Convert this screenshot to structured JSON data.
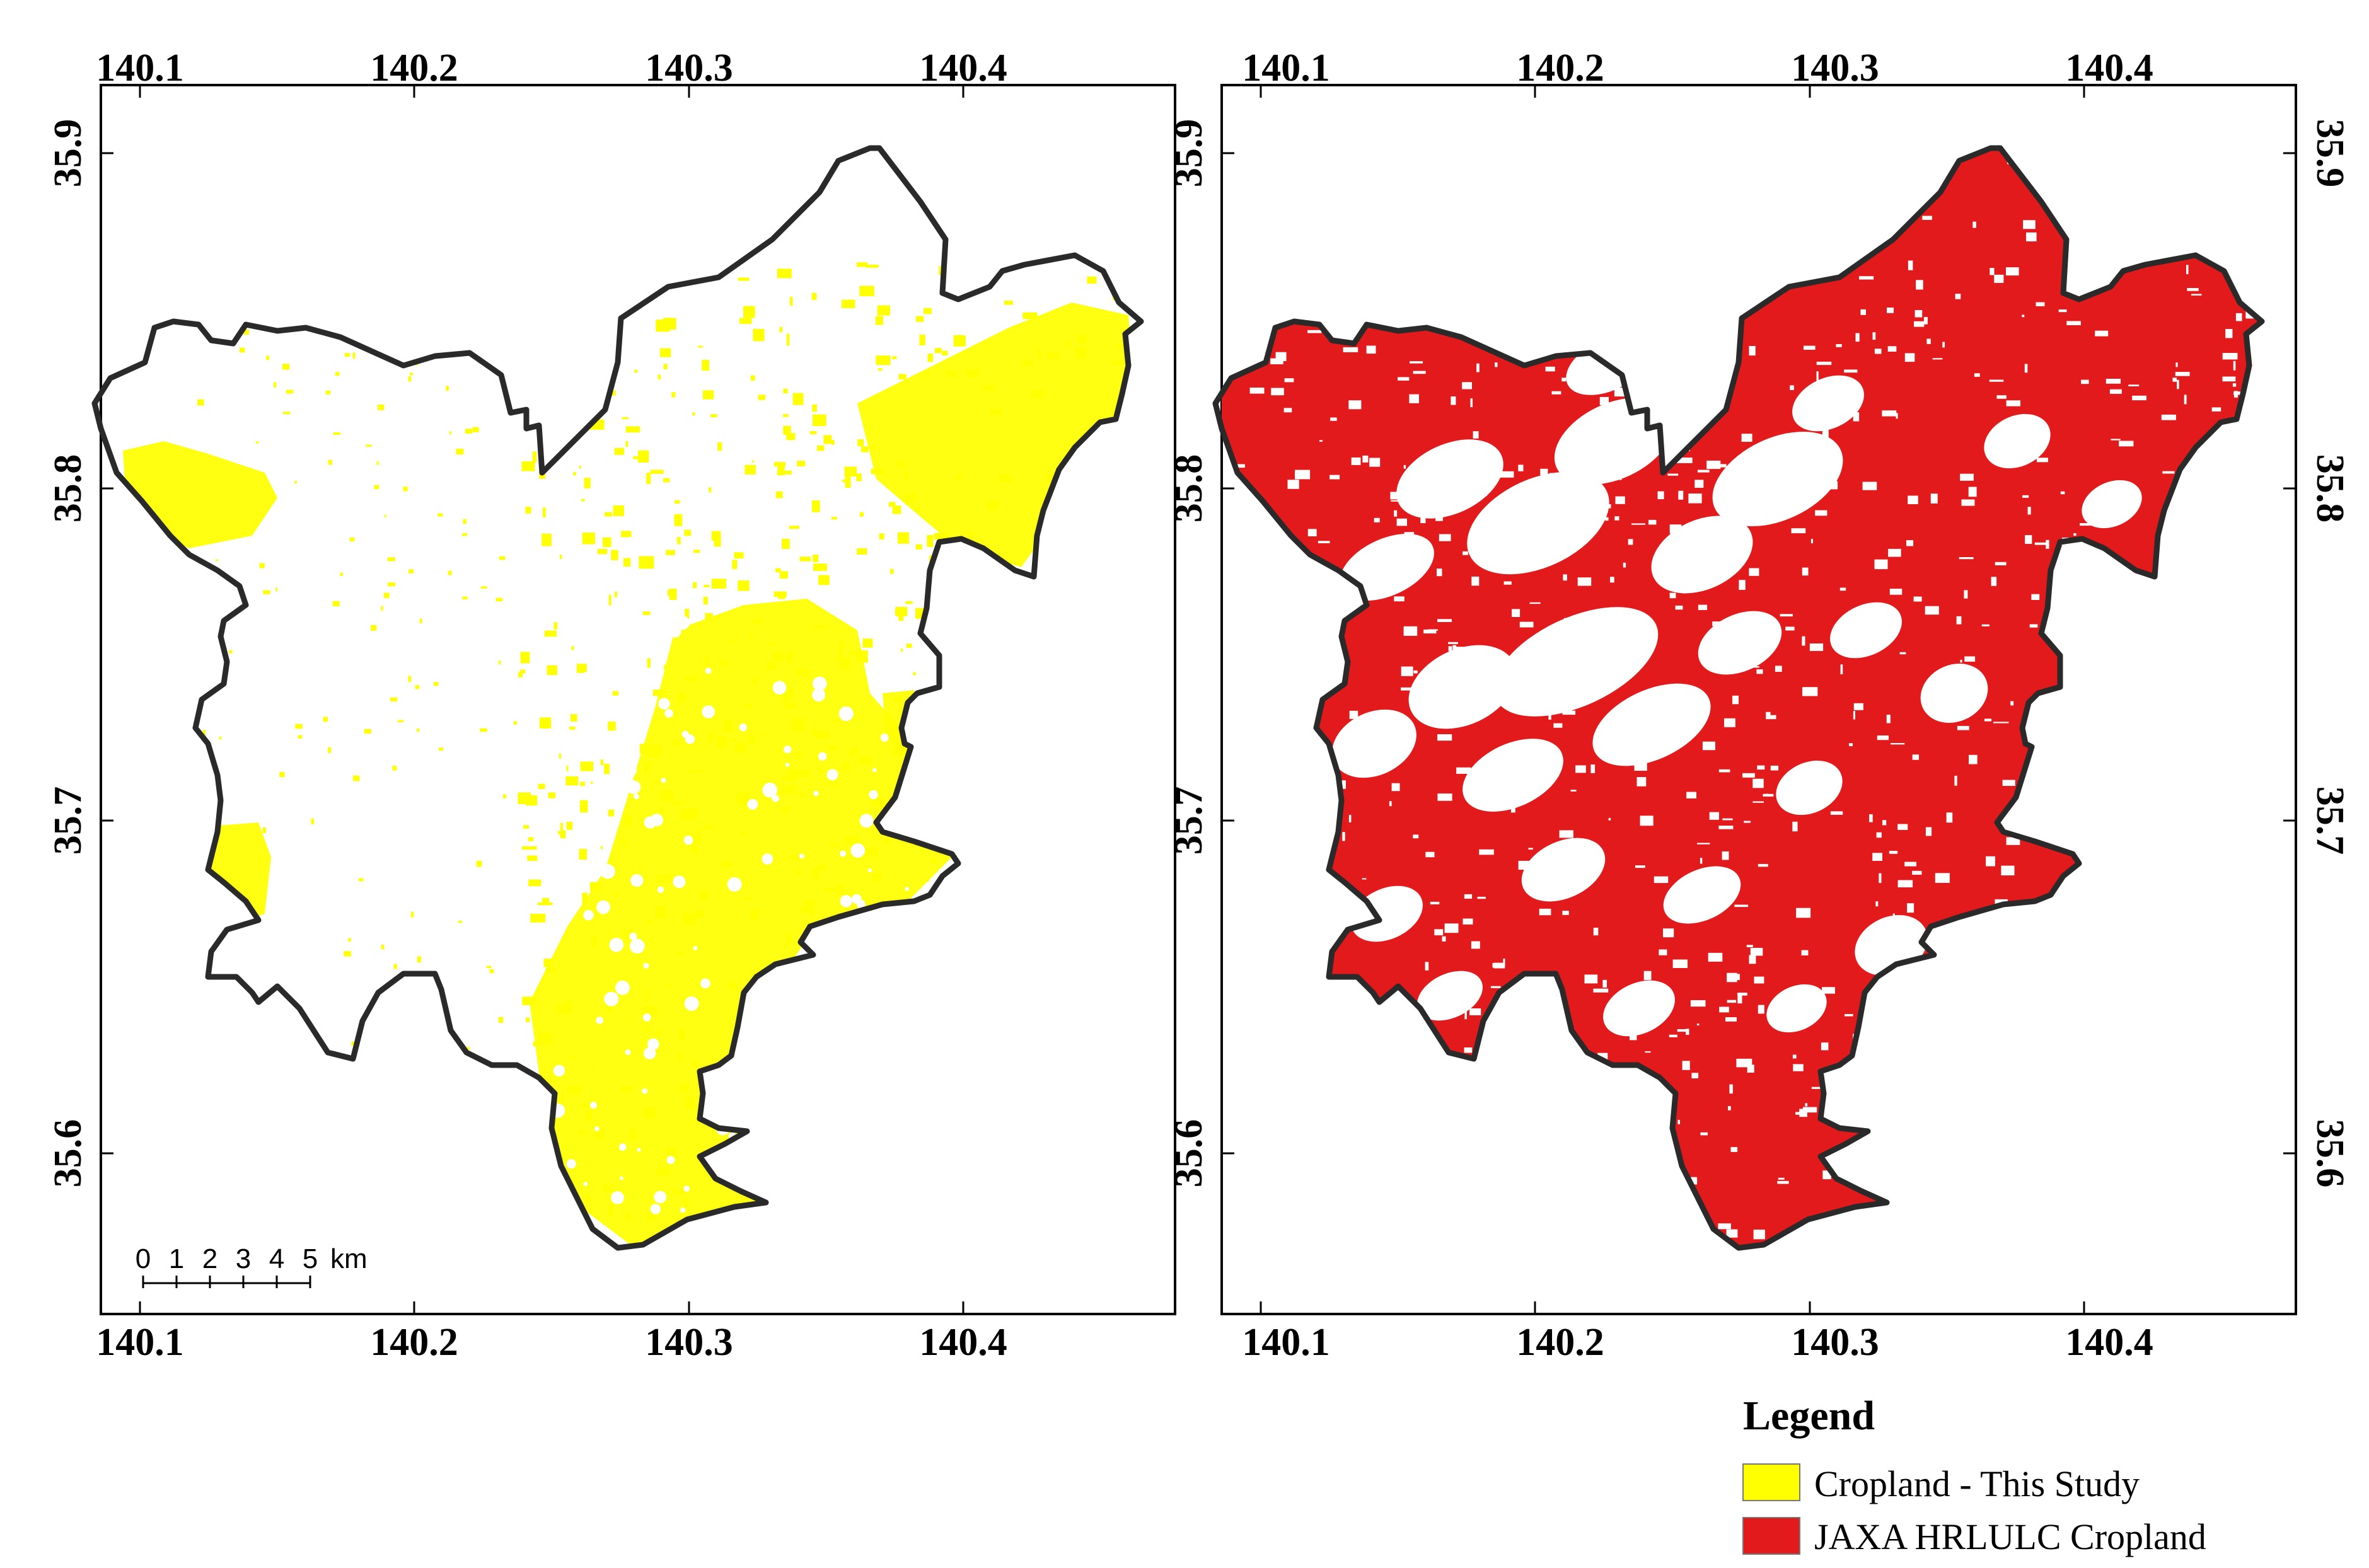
{
  "maps": [
    {
      "id": "this-study",
      "fill_color": "#ffff00",
      "lon_ticks": [
        "140.1",
        "140.2",
        "140.3",
        "140.4"
      ],
      "lat_ticks": [
        "35.6",
        "35.7",
        "35.8",
        "35.9"
      ],
      "scale_bar": {
        "labels": [
          "0",
          "1",
          "2",
          "3",
          "4",
          "5"
        ],
        "unit": "km"
      }
    },
    {
      "id": "jaxa",
      "fill_color": "#e31a1c",
      "lon_ticks": [
        "140.1",
        "140.2",
        "140.3",
        "140.4"
      ],
      "lat_ticks": [
        "35.6",
        "35.7",
        "35.8",
        "35.9"
      ]
    }
  ],
  "legend": {
    "title": "Legend",
    "items": [
      {
        "label": "Cropland - This Study",
        "color": "#ffff00"
      },
      {
        "label": "JAXA HRLULC Cropland",
        "color": "#e31a1c"
      }
    ]
  }
}
